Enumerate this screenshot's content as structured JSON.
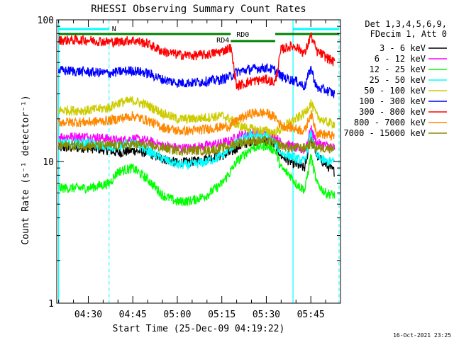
{
  "chart_data": {
    "type": "line",
    "title": "RHESSI Observing Summary Count Rates",
    "xlabel": "Start Time (25-Dec-09 04:19:22)",
    "ylabel": "Count Rate (s⁻¹ detector⁻¹)",
    "yscale": "log",
    "ylim": [
      1,
      100
    ],
    "xlim_minutes_utc": [
      "04:19:22",
      "05:55:00"
    ],
    "xticks": [
      "04:30",
      "04:45",
      "05:00",
      "05:15",
      "05:30",
      "05:45"
    ],
    "yticks": [
      "1",
      "10",
      "100"
    ],
    "timestamp": "16-Oct-2021 23:25",
    "legend": {
      "placement": "right-outside",
      "header": [
        "Det 1,3,4,5,6,9,",
        "FDecim 1, Att 0"
      ]
    },
    "grid": false,
    "annotations": {
      "flags": [
        {
          "label": "N",
          "color": "#00ffff"
        },
        {
          "label": "RD4",
          "color": "#008000"
        },
        {
          "label": "RD0",
          "color": "#008000"
        }
      ]
    },
    "x": [
      "04:20",
      "04:30",
      "04:37",
      "04:40",
      "04:45",
      "04:50",
      "04:55",
      "05:00",
      "05:05",
      "05:10",
      "05:15",
      "05:18",
      "05:20",
      "05:25",
      "05:30",
      "05:33",
      "05:35",
      "05:38",
      "05:40",
      "05:43",
      "05:45",
      "05:47",
      "05:50",
      "05:53"
    ],
    "series": [
      {
        "name": "3 - 6 keV",
        "color": "#000000",
        "values": [
          12.5,
          12.5,
          12,
          11.5,
          12,
          11.5,
          10.5,
          9.8,
          10,
          10.5,
          11,
          11.5,
          12.5,
          14,
          14,
          13,
          11,
          10,
          9.5,
          9,
          15,
          11,
          9.5,
          8.5
        ]
      },
      {
        "name": "6 - 12 keV",
        "color": "#ff00ff",
        "values": [
          15,
          15,
          14.5,
          14,
          14.5,
          14,
          13,
          12.5,
          12.5,
          13,
          13.5,
          14,
          15,
          16,
          16,
          15,
          13.5,
          13,
          12.5,
          12,
          17,
          13.5,
          13,
          12.5
        ]
      },
      {
        "name": "12 - 25 keV",
        "color": "#00ff00",
        "values": [
          6.5,
          6.5,
          7,
          8.5,
          9,
          7.5,
          5.8,
          5.2,
          5.3,
          5.8,
          7,
          8.5,
          10,
          12.5,
          13,
          12,
          9,
          8,
          7,
          6.3,
          11,
          7,
          6,
          5.8
        ]
      },
      {
        "name": "25 - 50 keV",
        "color": "#00ffff",
        "values": [
          13.5,
          13.5,
          12.5,
          13,
          13.5,
          12,
          10.5,
          9.5,
          9.5,
          10,
          11,
          12.5,
          13.5,
          15.5,
          15,
          13.5,
          11.5,
          11,
          10.5,
          10,
          16,
          11,
          10,
          10
        ]
      },
      {
        "name": "50 - 100 keV",
        "color": "#cccc00",
        "values": [
          23,
          23,
          24,
          26,
          27,
          25,
          22,
          20,
          20,
          20.5,
          21,
          20,
          18,
          17,
          16.5,
          16,
          17,
          19,
          20,
          22,
          26,
          21,
          19,
          18.5
        ]
      },
      {
        "name": "100 - 300 keV",
        "color": "#0000ff",
        "values": [
          44,
          43,
          42,
          43,
          44,
          42,
          38,
          36,
          36,
          37,
          38,
          40,
          43,
          45,
          46,
          44,
          40,
          38,
          37,
          34,
          46,
          33,
          32,
          30
        ]
      },
      {
        "name": "300 - 800 keV",
        "color": "#ff0000",
        "values": [
          72,
          72,
          70,
          70,
          72,
          68,
          60,
          57,
          56,
          57,
          60,
          64,
          34,
          37,
          38,
          36,
          62,
          65,
          65,
          58,
          78,
          60,
          55,
          50
        ]
      },
      {
        "name": "800 - 7000 keV",
        "color": "#ff8800",
        "values": [
          19,
          19,
          19.5,
          20,
          21,
          19.5,
          17.5,
          16.5,
          16.5,
          17,
          17.5,
          18,
          19.5,
          22,
          22,
          20.5,
          18,
          17.5,
          17,
          16.5,
          22,
          16,
          15.5,
          15
        ]
      },
      {
        "name": "7000 - 15000 keV",
        "color": "#8b8b00",
        "values": [
          13,
          13,
          13,
          13,
          13.2,
          13,
          12.5,
          12,
          12,
          12,
          12.5,
          13,
          13.5,
          14,
          14,
          13.5,
          13,
          12.5,
          12.5,
          12.5,
          13.5,
          12.5,
          12.5,
          12.5
        ]
      }
    ]
  }
}
